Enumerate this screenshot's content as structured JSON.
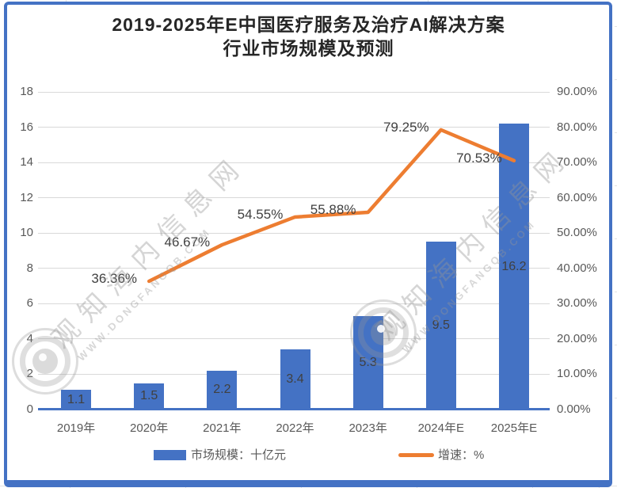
{
  "title": {
    "line1": "2019-2025年E中国医疗服务及治疗AI解决方案",
    "line2": "行业市场规模及预测"
  },
  "legend": {
    "items": [
      {
        "label": "市场规模：十亿元",
        "type": "bar",
        "color": "#4472C4"
      },
      {
        "label": "增速：%",
        "type": "line",
        "color": "#ED7D31"
      }
    ]
  },
  "watermark": {
    "text": "观知海内信息网",
    "subtext": "WWW.DONGFANGQB.COM"
  },
  "colors": {
    "bar": "#4472C4",
    "line": "#ED7D31",
    "frame_border": "#4472C4",
    "gridline": "#D9D9D9",
    "axis_text": "#595959",
    "data_label_text": "#404040",
    "title_text": "#262626",
    "watermark": "#969696"
  },
  "chart_data": {
    "type": "bar",
    "subtype": "bar-with-line-combo",
    "categories": [
      "2019年",
      "2020年",
      "2021年",
      "2022年",
      "2023年",
      "2024年E",
      "2025年E"
    ],
    "series": [
      {
        "name": "市场规模：十亿元",
        "type": "bar",
        "axis": "left",
        "color": "#4472C4",
        "values": [
          1.1,
          1.5,
          2.2,
          3.4,
          5.3,
          9.5,
          16.2
        ],
        "labels": [
          "1.1",
          "1.5",
          "2.2",
          "3.4",
          "5.3",
          "9.5",
          "16.2"
        ]
      },
      {
        "name": "增速：%",
        "type": "line",
        "axis": "right",
        "color": "#ED7D31",
        "values": [
          null,
          36.36,
          46.67,
          54.55,
          55.88,
          79.25,
          70.53
        ],
        "labels": [
          null,
          "36.36%",
          "46.67%",
          "54.55%",
          "55.88%",
          "79.25%",
          "70.53%"
        ]
      }
    ],
    "left_axis": {
      "min": 0,
      "max": 18,
      "step": 2,
      "ticks": [
        "0",
        "2",
        "4",
        "6",
        "8",
        "10",
        "12",
        "14",
        "16",
        "18"
      ]
    },
    "right_axis": {
      "min": 0,
      "max": 90,
      "step": 10,
      "ticks": [
        "0.00%",
        "10.00%",
        "20.00%",
        "30.00%",
        "40.00%",
        "50.00%",
        "60.00%",
        "70.00%",
        "80.00%",
        "90.00%"
      ]
    },
    "grid": true,
    "legend_position": "bottom"
  }
}
